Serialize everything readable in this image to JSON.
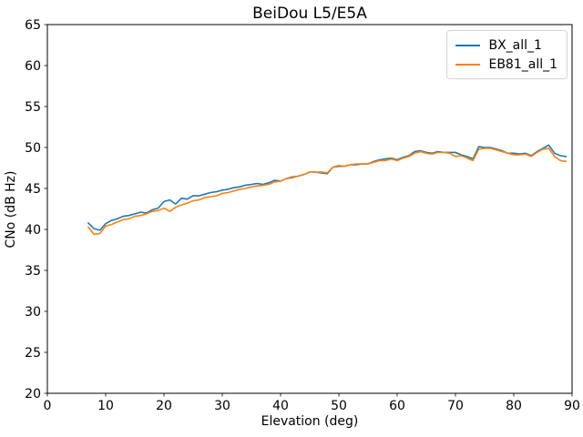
{
  "chart_data": {
    "type": "line",
    "title": "BeiDou L5/E5A",
    "xlabel": "Elevation (deg)",
    "ylabel": "CNo (dB Hz)",
    "xlim": [
      0,
      90
    ],
    "ylim": [
      20,
      65
    ],
    "xticks": [
      0,
      10,
      20,
      30,
      40,
      50,
      60,
      70,
      80,
      90
    ],
    "yticks": [
      20,
      25,
      30,
      35,
      40,
      45,
      50,
      55,
      60,
      65
    ],
    "grid": false,
    "legend_position": "upper right",
    "x": [
      7,
      8,
      9,
      10,
      11,
      12,
      13,
      14,
      15,
      16,
      17,
      18,
      19,
      20,
      21,
      22,
      23,
      24,
      25,
      26,
      27,
      28,
      29,
      30,
      31,
      32,
      33,
      34,
      35,
      36,
      37,
      38,
      39,
      40,
      41,
      42,
      43,
      44,
      45,
      46,
      47,
      48,
      49,
      50,
      51,
      52,
      53,
      54,
      55,
      56,
      57,
      58,
      59,
      60,
      61,
      62,
      63,
      64,
      65,
      66,
      67,
      68,
      69,
      70,
      71,
      72,
      73,
      74,
      75,
      76,
      77,
      78,
      79,
      80,
      81,
      82,
      83,
      84,
      85,
      86,
      87,
      88,
      89
    ],
    "series": [
      {
        "name": "BX_all_1",
        "color": "#1f77b4",
        "values": [
          40.8,
          40.1,
          39.9,
          40.7,
          41.1,
          41.3,
          41.6,
          41.7,
          41.9,
          42.1,
          42.0,
          42.4,
          42.6,
          43.4,
          43.6,
          43.1,
          43.8,
          43.7,
          44.1,
          44.1,
          44.3,
          44.5,
          44.6,
          44.8,
          44.9,
          45.1,
          45.2,
          45.4,
          45.5,
          45.6,
          45.5,
          45.7,
          46.0,
          45.9,
          46.2,
          46.4,
          46.5,
          46.7,
          47.0,
          47.0,
          46.9,
          46.8,
          47.6,
          47.7,
          47.7,
          47.9,
          47.9,
          48.0,
          48.0,
          48.3,
          48.5,
          48.6,
          48.7,
          48.5,
          48.8,
          49.0,
          49.5,
          49.6,
          49.4,
          49.3,
          49.5,
          49.4,
          49.4,
          49.4,
          49.1,
          48.9,
          48.6,
          50.1,
          50.0,
          50.0,
          49.8,
          49.6,
          49.3,
          49.3,
          49.2,
          49.3,
          49.0,
          49.5,
          49.9,
          50.3,
          49.3,
          49.0,
          48.9
        ]
      },
      {
        "name": "EB81_all_1",
        "color": "#ff7f0e",
        "values": [
          40.3,
          39.4,
          39.5,
          40.4,
          40.6,
          40.9,
          41.2,
          41.3,
          41.6,
          41.7,
          41.9,
          42.2,
          42.3,
          42.6,
          42.2,
          42.7,
          43.0,
          43.2,
          43.5,
          43.6,
          43.9,
          44.0,
          44.1,
          44.4,
          44.5,
          44.7,
          44.9,
          45.0,
          45.2,
          45.3,
          45.4,
          45.5,
          45.8,
          45.9,
          46.2,
          46.3,
          46.5,
          46.7,
          47.0,
          47.0,
          47.0,
          46.9,
          47.6,
          47.8,
          47.7,
          47.9,
          48.0,
          48.0,
          48.0,
          48.2,
          48.4,
          48.4,
          48.6,
          48.4,
          48.7,
          48.9,
          49.3,
          49.5,
          49.3,
          49.2,
          49.4,
          49.4,
          49.3,
          48.9,
          49.0,
          48.7,
          48.4,
          49.8,
          49.9,
          49.9,
          49.7,
          49.5,
          49.3,
          49.1,
          49.1,
          49.2,
          48.9,
          49.4,
          49.8,
          49.9,
          48.9,
          48.4,
          48.3
        ]
      }
    ]
  }
}
